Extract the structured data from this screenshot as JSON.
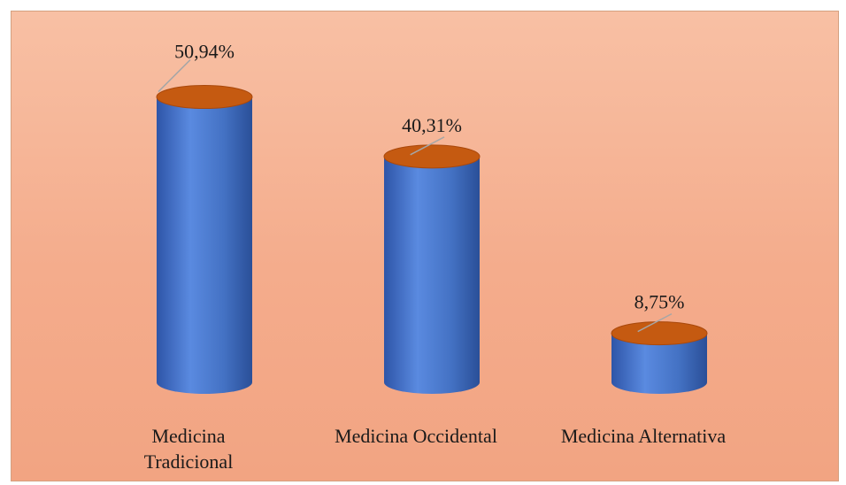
{
  "chart_data": {
    "type": "bar",
    "style": "3d-cylinder",
    "categories": [
      [
        "Medicina",
        "Tradicional"
      ],
      [
        "Medicina Occidental"
      ],
      [
        "Medicina Alternativa"
      ]
    ],
    "values": [
      50.94,
      40.31,
      8.75
    ],
    "value_labels": [
      "50,94%",
      "40,31%",
      "8,75%"
    ],
    "ylim": [
      0,
      60
    ],
    "grid": false,
    "legend": "none",
    "colors": {
      "cylinder_body": "#4472c4",
      "cylinder_top": "#c55a11",
      "background": "#f4ac8c",
      "leader_line": "#a6a6a6"
    }
  }
}
